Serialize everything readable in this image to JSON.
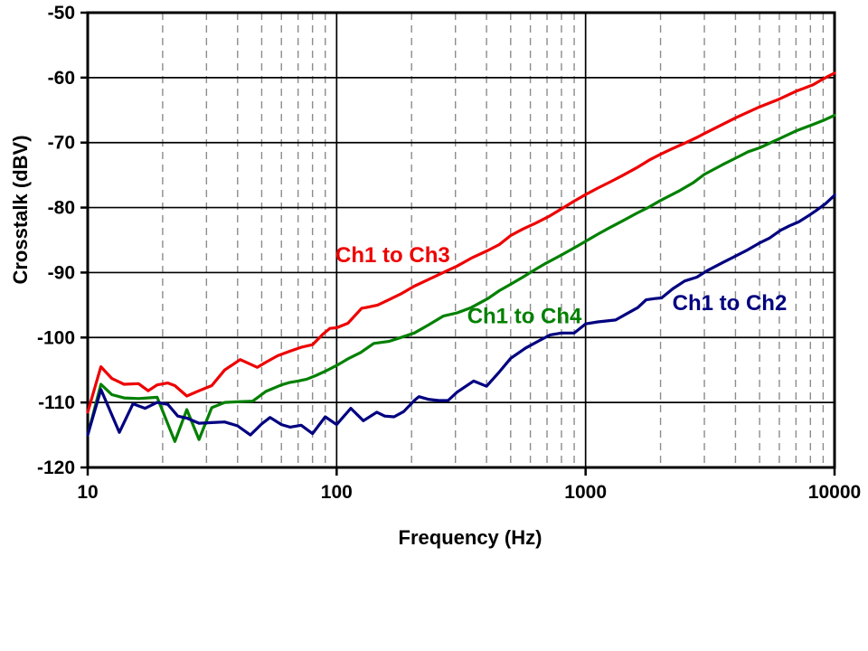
{
  "chart_data": {
    "type": "line",
    "title": "",
    "xlabel": "Frequency (Hz)",
    "ylabel": "Crosstalk (dBV)",
    "x_scale": "log",
    "xlim": [
      10,
      10000
    ],
    "ylim": [
      -120,
      -50
    ],
    "x_major_ticks": [
      10,
      100,
      1000,
      10000
    ],
    "x_major_tick_labels": [
      "10",
      "100",
      "1000",
      "10000"
    ],
    "y_ticks": [
      -50,
      -60,
      -70,
      -80,
      -90,
      -100,
      -110,
      -120
    ],
    "y_tick_labels": [
      "-50",
      "-60",
      "-70",
      "-80",
      "-90",
      "-100",
      "-110",
      "-120"
    ],
    "grid": {
      "horizontal": "solid black at every 10 dBV",
      "vertical_major": "solid black at decades",
      "vertical_minor": "dashed gray at 2-9 of each decade",
      "minor_color": "#8c8c8c",
      "major_color": "#000000"
    },
    "legend_position": "inline-labels",
    "series": [
      {
        "name": "Ch1 to Ch3",
        "color": "#ee0000",
        "points": [
          [
            10,
            -111.5
          ],
          [
            11.3,
            -104.5
          ],
          [
            12.5,
            -106.3
          ],
          [
            14,
            -107.2
          ],
          [
            16,
            -107.1
          ],
          [
            17.5,
            -108.2
          ],
          [
            19,
            -107.3
          ],
          [
            21,
            -107.0
          ],
          [
            22.4,
            -107.4
          ],
          [
            25,
            -109.0
          ],
          [
            28,
            -108.2
          ],
          [
            31.5,
            -107.4
          ],
          [
            35.5,
            -105.0
          ],
          [
            41,
            -103.4
          ],
          [
            48,
            -104.6
          ],
          [
            52,
            -103.8
          ],
          [
            58,
            -102.8
          ],
          [
            65,
            -102.1
          ],
          [
            72,
            -101.5
          ],
          [
            80,
            -101.1
          ],
          [
            88,
            -99.5
          ],
          [
            94,
            -98.6
          ],
          [
            100,
            -98.5
          ],
          [
            111,
            -97.8
          ],
          [
            126,
            -95.5
          ],
          [
            131,
            -95.4
          ],
          [
            146,
            -95.0
          ],
          [
            162,
            -94.2
          ],
          [
            181,
            -93.3
          ],
          [
            205,
            -92.1
          ],
          [
            233,
            -91.1
          ],
          [
            268,
            -90.0
          ],
          [
            305,
            -89.0
          ],
          [
            347,
            -87.8
          ],
          [
            405,
            -86.6
          ],
          [
            450,
            -85.7
          ],
          [
            500,
            -84.3
          ],
          [
            560,
            -83.3
          ],
          [
            630,
            -82.4
          ],
          [
            710,
            -81.4
          ],
          [
            800,
            -80.2
          ],
          [
            900,
            -79.0
          ],
          [
            1000,
            -78.0
          ],
          [
            1120,
            -77.0
          ],
          [
            1250,
            -76.1
          ],
          [
            1400,
            -75.1
          ],
          [
            1600,
            -73.9
          ],
          [
            1800,
            -72.7
          ],
          [
            2000,
            -71.8
          ],
          [
            2240,
            -70.9
          ],
          [
            2500,
            -70.1
          ],
          [
            2800,
            -69.2
          ],
          [
            3000,
            -68.6
          ],
          [
            3550,
            -67.2
          ],
          [
            4000,
            -66.2
          ],
          [
            4500,
            -65.3
          ],
          [
            5000,
            -64.5
          ],
          [
            6000,
            -63.3
          ],
          [
            7000,
            -62.1
          ],
          [
            8200,
            -61.1
          ],
          [
            9000,
            -60.2
          ],
          [
            10000,
            -59.3
          ]
        ]
      },
      {
        "name": "Ch1 to Ch4",
        "color": "#008000",
        "points": [
          [
            10,
            -115.0
          ],
          [
            11.3,
            -107.2
          ],
          [
            12.5,
            -108.8
          ],
          [
            14,
            -109.3
          ],
          [
            16,
            -109.4
          ],
          [
            19,
            -109.2
          ],
          [
            22.4,
            -116.0
          ],
          [
            25,
            -111.1
          ],
          [
            28,
            -115.7
          ],
          [
            31.5,
            -110.8
          ],
          [
            35.5,
            -110.0
          ],
          [
            40,
            -109.9
          ],
          [
            46,
            -109.8
          ],
          [
            52,
            -108.3
          ],
          [
            60,
            -107.3
          ],
          [
            65,
            -106.9
          ],
          [
            70,
            -106.7
          ],
          [
            76,
            -106.4
          ],
          [
            83,
            -105.8
          ],
          [
            91,
            -105.1
          ],
          [
            100,
            -104.3
          ],
          [
            112,
            -103.2
          ],
          [
            125,
            -102.3
          ],
          [
            141,
            -100.9
          ],
          [
            162,
            -100.6
          ],
          [
            181,
            -100.0
          ],
          [
            205,
            -99.3
          ],
          [
            233,
            -98.1
          ],
          [
            268,
            -96.7
          ],
          [
            305,
            -96.2
          ],
          [
            347,
            -95.4
          ],
          [
            405,
            -94.0
          ],
          [
            450,
            -92.8
          ],
          [
            500,
            -91.8
          ],
          [
            560,
            -90.7
          ],
          [
            630,
            -89.5
          ],
          [
            690,
            -88.6
          ],
          [
            800,
            -87.3
          ],
          [
            900,
            -86.2
          ],
          [
            1000,
            -85.2
          ],
          [
            1120,
            -84.1
          ],
          [
            1250,
            -83.1
          ],
          [
            1400,
            -82.1
          ],
          [
            1600,
            -80.9
          ],
          [
            1800,
            -79.9
          ],
          [
            2000,
            -78.9
          ],
          [
            2360,
            -77.5
          ],
          [
            2700,
            -76.2
          ],
          [
            3000,
            -74.9
          ],
          [
            3550,
            -73.4
          ],
          [
            4000,
            -72.4
          ],
          [
            4500,
            -71.4
          ],
          [
            5000,
            -70.8
          ],
          [
            6000,
            -69.4
          ],
          [
            7000,
            -68.2
          ],
          [
            8200,
            -67.2
          ],
          [
            9000,
            -66.6
          ],
          [
            10000,
            -65.8
          ]
        ]
      },
      {
        "name": "Ch1 to Ch2",
        "color": "#000080",
        "points": [
          [
            10,
            -115.0
          ],
          [
            11.3,
            -108.0
          ],
          [
            13.4,
            -114.6
          ],
          [
            15.2,
            -110.2
          ],
          [
            17,
            -110.9
          ],
          [
            19,
            -110.0
          ],
          [
            21,
            -110.3
          ],
          [
            23,
            -112.1
          ],
          [
            25,
            -112.4
          ],
          [
            28,
            -113.2
          ],
          [
            31.5,
            -113.1
          ],
          [
            35.5,
            -113.0
          ],
          [
            40,
            -113.6
          ],
          [
            45,
            -115.0
          ],
          [
            50,
            -113.3
          ],
          [
            54,
            -112.3
          ],
          [
            60,
            -113.4
          ],
          [
            65,
            -113.8
          ],
          [
            72,
            -113.5
          ],
          [
            80,
            -114.8
          ],
          [
            90,
            -112.2
          ],
          [
            100,
            -113.4
          ],
          [
            114,
            -110.9
          ],
          [
            128,
            -112.8
          ],
          [
            145,
            -111.5
          ],
          [
            156,
            -112.1
          ],
          [
            170,
            -112.2
          ],
          [
            186,
            -111.4
          ],
          [
            205,
            -109.7
          ],
          [
            214,
            -109.1
          ],
          [
            233,
            -109.5
          ],
          [
            257,
            -109.7
          ],
          [
            280,
            -109.7
          ],
          [
            305,
            -108.4
          ],
          [
            355,
            -106.7
          ],
          [
            400,
            -107.5
          ],
          [
            450,
            -105.3
          ],
          [
            500,
            -103.2
          ],
          [
            575,
            -101.6
          ],
          [
            650,
            -100.5
          ],
          [
            720,
            -99.6
          ],
          [
            800,
            -99.3
          ],
          [
            900,
            -99.3
          ],
          [
            1000,
            -97.9
          ],
          [
            1120,
            -97.6
          ],
          [
            1320,
            -97.3
          ],
          [
            1470,
            -96.3
          ],
          [
            1620,
            -95.4
          ],
          [
            1750,
            -94.2
          ],
          [
            1900,
            -94.0
          ],
          [
            2020,
            -93.9
          ],
          [
            2240,
            -92.5
          ],
          [
            2500,
            -91.3
          ],
          [
            2800,
            -90.7
          ],
          [
            3080,
            -89.7
          ],
          [
            3580,
            -88.4
          ],
          [
            3940,
            -87.6
          ],
          [
            4480,
            -86.5
          ],
          [
            4970,
            -85.5
          ],
          [
            5480,
            -84.7
          ],
          [
            6070,
            -83.5
          ],
          [
            6600,
            -82.8
          ],
          [
            7180,
            -82.2
          ],
          [
            7900,
            -81.2
          ],
          [
            8400,
            -80.5
          ],
          [
            9200,
            -79.4
          ],
          [
            10000,
            -78.1
          ]
        ]
      }
    ],
    "annotations": [
      {
        "text": "Ch1 to Ch3",
        "color": "#ee0000",
        "freq": 168,
        "dbv": -87.3
      },
      {
        "text": "Ch1 to Ch4",
        "color": "#008000",
        "freq": 568,
        "dbv": -96.7
      },
      {
        "text": "Ch1 to Ch2",
        "color": "#000080",
        "freq": 3790,
        "dbv": -94.7
      }
    ]
  }
}
